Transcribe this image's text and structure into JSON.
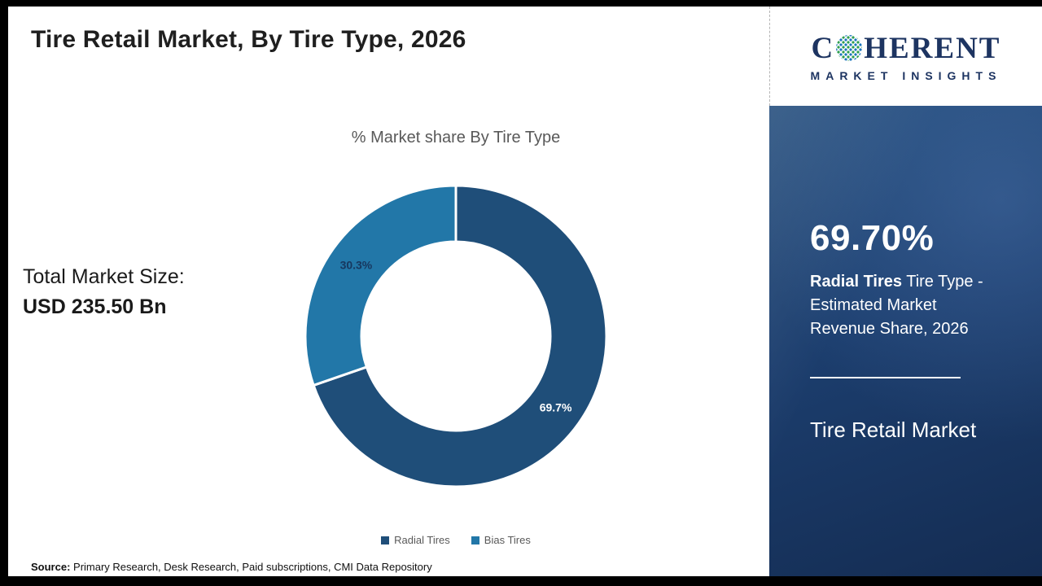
{
  "header": {
    "title": "Tire Retail Market, By Tire Type, 2026"
  },
  "logo": {
    "line1_prefix": "C",
    "line1_suffix": "HERENT",
    "line2": "MARKET INSIGHTS",
    "globe_icon": "dotted-globe-o",
    "brand_color": "#1d3461"
  },
  "left_panel": {
    "total_label": "Total Market Size:",
    "total_value": "USD 235.50 Bn"
  },
  "chart_data": {
    "type": "pie",
    "donut": true,
    "title": "% Market share By Tire Type",
    "categories": [
      "Radial Tires",
      "Bias Tires"
    ],
    "values": [
      69.7,
      30.3
    ],
    "labels": [
      "69.7%",
      "30.3%"
    ],
    "colors": [
      "#1f4e79",
      "#2277a8"
    ],
    "label_colors": [
      "#ffffff",
      "#17375e"
    ],
    "start_angle_deg": 0,
    "direction": "clockwise",
    "legend_position": "bottom",
    "outer_radius": 185,
    "inner_radius": 116
  },
  "sidebar": {
    "stat": "69.70%",
    "desc_bold": "Radial Tires",
    "desc_rest": " Tire Type - Estimated Market Revenue Share, 2026",
    "product": "Tire Retail Market",
    "bg_color": "#1c3e6e"
  },
  "footer": {
    "source_label": "Source:",
    "source_text": " Primary Research, Desk Research, Paid subscriptions, CMI Data Repository"
  }
}
